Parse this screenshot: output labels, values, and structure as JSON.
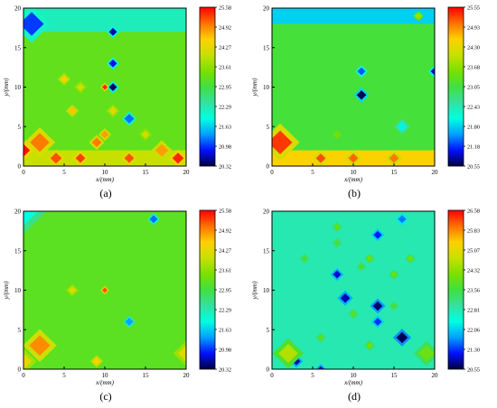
{
  "chart_data": [
    {
      "type": "heatmap",
      "panel_label": "(a)",
      "xlabel": "x/(mm)",
      "ylabel": "y/(mm)",
      "xlim": [
        0,
        20
      ],
      "ylim": [
        0,
        20
      ],
      "x_ticks": [
        "0",
        "5",
        "10",
        "15",
        "20"
      ],
      "y_ticks": [
        "0",
        "5",
        "10",
        "15",
        "20"
      ],
      "colorbar": {
        "min": 20.32,
        "max": 25.58,
        "ticks": [
          "25.58",
          "24.92",
          "24.27",
          "23.61",
          "22.95",
          "22.29",
          "21.63",
          "20.98",
          "20.32"
        ]
      },
      "base_value": 23.25,
      "features": [
        {
          "kind": "band",
          "y_from": 17,
          "y_to": 20,
          "x_from": 0,
          "x_to": 20,
          "value": 22.2
        },
        {
          "kind": "band",
          "y_from": 0,
          "y_to": 2,
          "x_from": 0,
          "x_to": 20,
          "value": 24.0
        },
        {
          "kind": "spot",
          "x": 1,
          "y": 18,
          "r": 1.5,
          "value": 21.0
        },
        {
          "kind": "spot",
          "x": 2,
          "y": 3,
          "r": 1.2,
          "value": 25.0
        },
        {
          "kind": "spot",
          "x": 0,
          "y": 2,
          "r": 0.8,
          "value": 25.5
        },
        {
          "kind": "spot",
          "x": 11,
          "y": 17,
          "r": 0.5,
          "value": 20.6
        },
        {
          "kind": "spot",
          "x": 11,
          "y": 13,
          "r": 0.5,
          "value": 20.8
        },
        {
          "kind": "spot",
          "x": 11,
          "y": 10,
          "r": 0.5,
          "value": 20.4
        },
        {
          "kind": "spot",
          "x": 10,
          "y": 10,
          "r": 0.3,
          "value": 25.4
        },
        {
          "kind": "spot",
          "x": 13,
          "y": 6,
          "r": 0.6,
          "value": 21.2
        },
        {
          "kind": "spot",
          "x": 5,
          "y": 11,
          "r": 0.5,
          "value": 24.4
        },
        {
          "kind": "spot",
          "x": 6,
          "y": 7,
          "r": 0.5,
          "value": 24.6
        },
        {
          "kind": "spot",
          "x": 7,
          "y": 10,
          "r": 0.5,
          "value": 24.0
        },
        {
          "kind": "spot",
          "x": 9,
          "y": 3,
          "r": 0.6,
          "value": 25.0
        },
        {
          "kind": "spot",
          "x": 10,
          "y": 4,
          "r": 0.5,
          "value": 24.8
        },
        {
          "kind": "spot",
          "x": 11,
          "y": 7,
          "r": 0.5,
          "value": 24.2
        },
        {
          "kind": "spot",
          "x": 15,
          "y": 4,
          "r": 0.5,
          "value": 24.0
        },
        {
          "kind": "spot",
          "x": 4,
          "y": 1,
          "r": 0.7,
          "value": 25.2
        },
        {
          "kind": "spot",
          "x": 7,
          "y": 1,
          "r": 0.6,
          "value": 25.3
        },
        {
          "kind": "spot",
          "x": 13,
          "y": 1,
          "r": 0.6,
          "value": 25.2
        },
        {
          "kind": "spot",
          "x": 19,
          "y": 1,
          "r": 0.7,
          "value": 25.4
        },
        {
          "kind": "spot",
          "x": 17,
          "y": 2,
          "r": 0.8,
          "value": 24.8
        }
      ]
    },
    {
      "type": "heatmap",
      "panel_label": "(b)",
      "xlabel": "x/(mm)",
      "ylabel": "y/(mm)",
      "xlim": [
        0,
        20
      ],
      "ylim": [
        0,
        20
      ],
      "x_ticks": [
        "0",
        "5",
        "10",
        "15",
        "20"
      ],
      "y_ticks": [
        "0",
        "5",
        "10",
        "15",
        "20"
      ],
      "colorbar": {
        "min": 20.55,
        "max": 25.55,
        "ticks": [
          "25.55",
          "24.93",
          "24.30",
          "23.68",
          "23.05",
          "22.43",
          "21.80",
          "21.18",
          "20.55"
        ]
      },
      "base_value": 23.1,
      "features": [
        {
          "kind": "band",
          "y_from": 18,
          "y_to": 20,
          "x_from": 0,
          "x_to": 20,
          "value": 21.8
        },
        {
          "kind": "band",
          "y_from": 0,
          "y_to": 2,
          "x_from": 0,
          "x_to": 20,
          "value": 24.5
        },
        {
          "kind": "spot",
          "x": 1,
          "y": 3,
          "r": 1.5,
          "value": 25.3
        },
        {
          "kind": "spot",
          "x": 11,
          "y": 12,
          "r": 0.5,
          "value": 21.3
        },
        {
          "kind": "spot",
          "x": 11,
          "y": 9,
          "r": 0.6,
          "value": 20.6
        },
        {
          "kind": "spot",
          "x": 20,
          "y": 12,
          "r": 0.5,
          "value": 20.9
        },
        {
          "kind": "spot",
          "x": 16,
          "y": 5,
          "r": 0.6,
          "value": 22.0
        },
        {
          "kind": "spot",
          "x": 6,
          "y": 1,
          "r": 0.6,
          "value": 25.2
        },
        {
          "kind": "spot",
          "x": 10,
          "y": 1,
          "r": 0.6,
          "value": 25.1
        },
        {
          "kind": "spot",
          "x": 15,
          "y": 1,
          "r": 0.6,
          "value": 25.0
        },
        {
          "kind": "spot",
          "x": 18,
          "y": 19,
          "r": 0.4,
          "value": 23.8
        },
        {
          "kind": "spot",
          "x": 8,
          "y": 4,
          "r": 0.4,
          "value": 23.5
        }
      ]
    },
    {
      "type": "heatmap",
      "panel_label": "(c)",
      "xlabel": "x/(mm)",
      "ylabel": "y/(mm)",
      "xlim": [
        0,
        20
      ],
      "ylim": [
        0,
        20
      ],
      "x_ticks": [
        "0",
        "5",
        "10",
        "15",
        "20"
      ],
      "y_ticks": [
        "0",
        "5",
        "10",
        "15",
        "20"
      ],
      "colorbar": {
        "min": 20.32,
        "max": 25.58,
        "ticks": [
          "25.58",
          "24.92",
          "24.27",
          "23.61",
          "22.95",
          "22.29",
          "21.63",
          "20.98",
          "20.32"
        ]
      },
      "base_value": 23.2,
      "features": [
        {
          "kind": "spot",
          "x": 0,
          "y": 20,
          "r": 1.8,
          "value": 21.9
        },
        {
          "kind": "spot",
          "x": 16,
          "y": 19,
          "r": 0.5,
          "value": 21.2
        },
        {
          "kind": "spot",
          "x": 13,
          "y": 6,
          "r": 0.5,
          "value": 21.4
        },
        {
          "kind": "spot",
          "x": 10,
          "y": 10,
          "r": 0.25,
          "value": 25.2
        },
        {
          "kind": "spot",
          "x": 6,
          "y": 10,
          "r": 0.5,
          "value": 24.1
        },
        {
          "kind": "spot",
          "x": 2,
          "y": 3,
          "r": 1.3,
          "value": 24.9
        },
        {
          "kind": "spot",
          "x": 0,
          "y": 1,
          "r": 1.0,
          "value": 24.3
        },
        {
          "kind": "spot",
          "x": 9,
          "y": 1,
          "r": 0.5,
          "value": 24.5
        },
        {
          "kind": "spot",
          "x": 20,
          "y": 2,
          "r": 1.0,
          "value": 24.2
        }
      ]
    },
    {
      "type": "heatmap",
      "panel_label": "(d)",
      "xlabel": "x/(mm)",
      "ylabel": "y/(mm)",
      "xlim": [
        0,
        20
      ],
      "ylim": [
        0,
        20
      ],
      "x_ticks": [
        "0",
        "5",
        "10",
        "15",
        "20"
      ],
      "y_ticks": [
        "0",
        "5",
        "10",
        "15",
        "20"
      ],
      "colorbar": {
        "min": 20.55,
        "max": 26.58,
        "ticks": [
          "26.58",
          "25.83",
          "25.07",
          "24.32",
          "23.56",
          "22.81",
          "22.06",
          "21.30",
          "20.55"
        ]
      },
      "base_value": 22.8,
      "features": [
        {
          "kind": "spot",
          "x": 13,
          "y": 17,
          "r": 0.5,
          "value": 21.2
        },
        {
          "kind": "spot",
          "x": 16,
          "y": 19,
          "r": 0.5,
          "value": 21.6
        },
        {
          "kind": "spot",
          "x": 8,
          "y": 12,
          "r": 0.5,
          "value": 21.0
        },
        {
          "kind": "spot",
          "x": 9,
          "y": 9,
          "r": 0.6,
          "value": 20.9
        },
        {
          "kind": "spot",
          "x": 13,
          "y": 8,
          "r": 0.6,
          "value": 20.7
        },
        {
          "kind": "spot",
          "x": 13,
          "y": 6,
          "r": 0.5,
          "value": 21.3
        },
        {
          "kind": "spot",
          "x": 16,
          "y": 4,
          "r": 0.7,
          "value": 20.6
        },
        {
          "kind": "spot",
          "x": 3,
          "y": 1,
          "r": 0.5,
          "value": 20.9
        },
        {
          "kind": "spot",
          "x": 6,
          "y": 0,
          "r": 0.4,
          "value": 21.0
        },
        {
          "kind": "spot",
          "x": 11,
          "y": 13,
          "r": 0.4,
          "value": 23.6
        },
        {
          "kind": "spot",
          "x": 12,
          "y": 14,
          "r": 0.4,
          "value": 24.0
        },
        {
          "kind": "spot",
          "x": 15,
          "y": 12,
          "r": 0.4,
          "value": 24.0
        },
        {
          "kind": "spot",
          "x": 17,
          "y": 14,
          "r": 0.4,
          "value": 24.0
        },
        {
          "kind": "spot",
          "x": 8,
          "y": 18,
          "r": 0.4,
          "value": 23.9
        },
        {
          "kind": "spot",
          "x": 8,
          "y": 16,
          "r": 0.4,
          "value": 23.6
        },
        {
          "kind": "spot",
          "x": 4,
          "y": 14,
          "r": 0.4,
          "value": 23.6
        },
        {
          "kind": "spot",
          "x": 2,
          "y": 2,
          "r": 1.2,
          "value": 24.6
        },
        {
          "kind": "spot",
          "x": 19,
          "y": 2,
          "r": 1.0,
          "value": 24.0
        },
        {
          "kind": "spot",
          "x": 12,
          "y": 3,
          "r": 0.4,
          "value": 24.1
        },
        {
          "kind": "spot",
          "x": 6,
          "y": 4,
          "r": 0.4,
          "value": 23.8
        },
        {
          "kind": "spot",
          "x": 10,
          "y": 7,
          "r": 0.4,
          "value": 23.8
        },
        {
          "kind": "spot",
          "x": 15,
          "y": 8,
          "r": 0.4,
          "value": 23.6
        }
      ]
    }
  ]
}
